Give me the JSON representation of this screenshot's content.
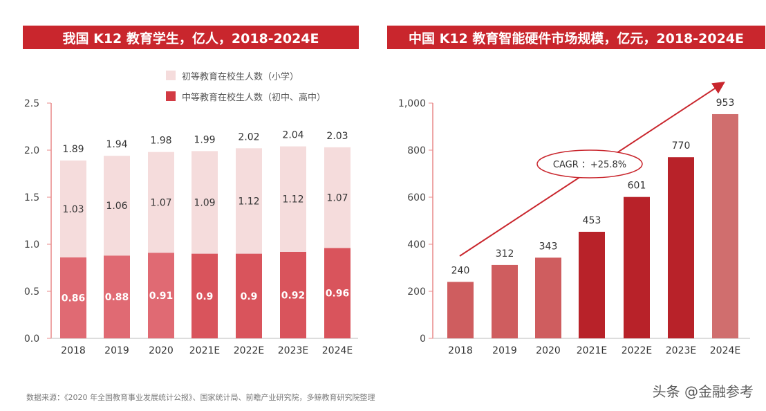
{
  "colors": {
    "banner": "#c9262d",
    "primary_light": "#f5dcdc",
    "secondary_default": "#e06a73",
    "secondary_forecast": "#d9545c",
    "hw_default": "#cf5d5f",
    "hw_dark": "#b82229",
    "hw_light": "#d06e6e"
  },
  "chart_data": [
    {
      "type": "bar",
      "stacked": true,
      "title": "我国 K12 教育学生，亿人，2018-2024E",
      "categories": [
        "2018",
        "2019",
        "2020",
        "2021E",
        "2022E",
        "2023E",
        "2024E"
      ],
      "series": [
        {
          "name": "中等教育在校生人数（初中、高中）",
          "values": [
            0.86,
            0.88,
            0.91,
            0.9,
            0.9,
            0.92,
            0.96
          ]
        },
        {
          "name": "初等教育在校生人数（小学）",
          "values": [
            1.03,
            1.06,
            1.07,
            1.09,
            1.12,
            1.12,
            1.07
          ]
        }
      ],
      "value_labels": {
        "secondary": [
          "0.86",
          "0.88",
          "0.91",
          "0.9",
          "0.9",
          "0.92",
          "0.96"
        ],
        "primary": [
          "1.03",
          "1.06",
          "1.07",
          "1.09",
          "1.12",
          "1.12",
          "1.07"
        ]
      },
      "totals": [
        "1.89",
        "1.94",
        "1.98",
        "1.99",
        "2.02",
        "2.04",
        "2.03"
      ],
      "yticks": [
        "0.0",
        "0.5",
        "1.0",
        "1.5",
        "2.0",
        "2.5"
      ],
      "ylim": [
        0,
        2.5
      ],
      "legend": [
        "初等教育在校生人数（小学）",
        "中等教育在校生人数（初中、高中）"
      ],
      "legend_position": "top-right"
    },
    {
      "type": "bar",
      "title": "中国 K12 教育智能硬件市场规模，亿元，2018-2024E",
      "categories": [
        "2018",
        "2019",
        "2020",
        "2021E",
        "2022E",
        "2023E",
        "2024E"
      ],
      "values": [
        240,
        312,
        343,
        453,
        601,
        770,
        953
      ],
      "value_labels": [
        "240",
        "312",
        "343",
        "453",
        "601",
        "770",
        "953"
      ],
      "yticks": [
        "0",
        "200",
        "400",
        "600",
        "800",
        "1,000"
      ],
      "ylim": [
        0,
        1000
      ],
      "annotation": "CAGR ：+25.8%"
    }
  ],
  "footer": {
    "source": "数据来源：《2020 年全国教育事业发展统计公报》、国家统计局、前瞻产业研究院，多鲸教育研究院整理",
    "watermark": "头条 @金融参考"
  }
}
